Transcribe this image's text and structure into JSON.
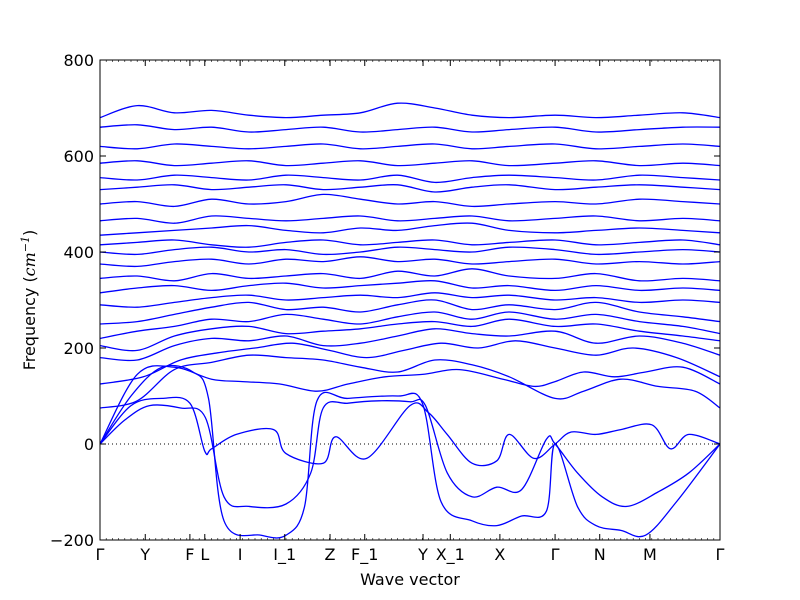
{
  "chart_data": {
    "type": "line",
    "title": "",
    "xlabel": "Wave vector",
    "ylabel": "Frequency (cm⁻¹)",
    "ylabel_prefix": "Frequency (",
    "ylabel_unit_base": "cm",
    "ylabel_unit_exp": "−1",
    "ylabel_suffix": ")",
    "ylim": [
      -200,
      800
    ],
    "xlim": [
      0,
      1
    ],
    "yticks": [
      -200,
      0,
      200,
      400,
      600,
      800
    ],
    "ytick_labels": [
      "−200",
      "0",
      "200",
      "400",
      "600",
      "800"
    ],
    "high_symmetry_points": [
      {
        "label": "Γ",
        "x": 0.0
      },
      {
        "label": "Y",
        "x": 0.073
      },
      {
        "label": "F",
        "x": 0.145
      },
      {
        "label": "L",
        "x": 0.169
      },
      {
        "label": "I",
        "x": 0.226
      },
      {
        "label": "I_1",
        "x": 0.298
      },
      {
        "label": "Z",
        "x": 0.371
      },
      {
        "label": "F_1",
        "x": 0.427
      },
      {
        "label": "Y",
        "x": 0.521
      },
      {
        "label": "X_1",
        "x": 0.565
      },
      {
        "label": "X",
        "x": 0.645
      },
      {
        "label": "Γ",
        "x": 0.734
      },
      {
        "label": "N",
        "x": 0.806
      },
      {
        "label": "M",
        "x": 0.887
      },
      {
        "label": "Γ",
        "x": 1.0
      }
    ],
    "zero_line": {
      "y": 0,
      "style": "dotted"
    },
    "grid": false,
    "legend": "none",
    "series_color": "#0000ff",
    "series": [
      {
        "x": [
          0,
          0.05,
          0.1,
          0.145,
          0.169,
          0.18,
          0.22,
          0.28,
          0.3,
          0.36,
          0.38,
          0.43,
          0.5,
          0.53,
          0.56,
          0.6,
          0.64,
          0.66,
          0.7,
          0.734,
          0.76,
          0.8,
          0.84,
          0.89,
          0.92,
          0.95,
          1.0
        ],
        "y": [
          0,
          80,
          95,
          85,
          -15,
          -10,
          20,
          30,
          -20,
          -40,
          15,
          -30,
          80,
          65,
          20,
          -40,
          -35,
          20,
          -30,
          0,
          25,
          20,
          30,
          40,
          -10,
          20,
          0
        ]
      },
      {
        "x": [
          0,
          0.04,
          0.08,
          0.13,
          0.17,
          0.2,
          0.24,
          0.3,
          0.34,
          0.36,
          0.4,
          0.45,
          0.5,
          0.525,
          0.56,
          0.6,
          0.64,
          0.68,
          0.72,
          0.734,
          0.77,
          0.81,
          0.85,
          0.9,
          0.95,
          1.0
        ],
        "y": [
          0,
          50,
          80,
          75,
          55,
          -110,
          -130,
          -125,
          -60,
          75,
          85,
          90,
          88,
          80,
          -60,
          -110,
          -90,
          -95,
          10,
          0,
          -60,
          -110,
          -130,
          -100,
          -60,
          0
        ]
      },
      {
        "x": [
          0,
          0.05,
          0.1,
          0.15,
          0.175,
          0.2,
          0.26,
          0.3,
          0.33,
          0.35,
          0.4,
          0.48,
          0.52,
          0.55,
          0.6,
          0.64,
          0.68,
          0.72,
          0.734,
          0.77,
          0.8,
          0.84,
          0.88,
          0.93,
          1.0
        ],
        "y": [
          0,
          100,
          160,
          150,
          95,
          -160,
          -190,
          -190,
          -130,
          90,
          95,
          100,
          85,
          -120,
          -160,
          -170,
          -150,
          -140,
          0,
          -130,
          -170,
          -180,
          -190,
          -120,
          0
        ]
      },
      {
        "x": [
          0,
          0.06,
          0.12,
          0.18,
          0.23,
          0.29,
          0.35,
          0.4,
          0.46,
          0.52,
          0.58,
          0.65,
          0.7,
          0.734,
          0.78,
          0.83,
          0.88,
          0.94,
          1.0
        ],
        "y": [
          0,
          145,
          160,
          135,
          130,
          125,
          110,
          125,
          140,
          145,
          155,
          135,
          120,
          130,
          150,
          140,
          150,
          160,
          125
        ]
      },
      {
        "x": [
          0,
          0.06,
          0.12,
          0.18,
          0.24,
          0.3,
          0.36,
          0.42,
          0.48,
          0.54,
          0.6,
          0.66,
          0.734,
          0.78,
          0.84,
          0.9,
          0.96,
          1.0
        ],
        "y": [
          75,
          90,
          155,
          170,
          185,
          180,
          175,
          160,
          150,
          175,
          165,
          140,
          95,
          110,
          135,
          120,
          110,
          75
        ]
      },
      {
        "x": [
          0,
          0.07,
          0.13,
          0.19,
          0.25,
          0.31,
          0.37,
          0.43,
          0.49,
          0.55,
          0.61,
          0.67,
          0.734,
          0.8,
          0.86,
          0.93,
          1.0
        ],
        "y": [
          125,
          140,
          175,
          190,
          200,
          210,
          195,
          180,
          195,
          210,
          200,
          215,
          200,
          185,
          200,
          180,
          140
        ]
      },
      {
        "x": [
          0,
          0.06,
          0.12,
          0.18,
          0.24,
          0.3,
          0.36,
          0.42,
          0.48,
          0.54,
          0.6,
          0.66,
          0.734,
          0.8,
          0.87,
          0.94,
          1.0
        ],
        "y": [
          180,
          175,
          205,
          220,
          215,
          225,
          205,
          210,
          225,
          240,
          230,
          225,
          235,
          210,
          225,
          210,
          185
        ]
      },
      {
        "x": [
          0,
          0.06,
          0.12,
          0.18,
          0.24,
          0.3,
          0.36,
          0.42,
          0.48,
          0.54,
          0.6,
          0.66,
          0.734,
          0.8,
          0.87,
          0.94,
          1.0
        ],
        "y": [
          205,
          195,
          225,
          240,
          245,
          230,
          235,
          240,
          250,
          255,
          245,
          260,
          245,
          250,
          235,
          225,
          215
        ]
      },
      {
        "x": [
          0,
          0.06,
          0.12,
          0.18,
          0.24,
          0.3,
          0.36,
          0.42,
          0.48,
          0.54,
          0.6,
          0.66,
          0.734,
          0.8,
          0.87,
          0.94,
          1.0
        ],
        "y": [
          220,
          235,
          245,
          260,
          255,
          270,
          260,
          250,
          265,
          275,
          260,
          275,
          260,
          270,
          255,
          245,
          230
        ]
      },
      {
        "x": [
          0,
          0.06,
          0.12,
          0.18,
          0.24,
          0.3,
          0.36,
          0.42,
          0.48,
          0.54,
          0.6,
          0.66,
          0.734,
          0.8,
          0.87,
          0.94,
          1.0
        ],
        "y": [
          250,
          255,
          270,
          285,
          295,
          280,
          285,
          275,
          290,
          300,
          280,
          290,
          280,
          295,
          275,
          265,
          255
        ]
      },
      {
        "x": [
          0,
          0.06,
          0.12,
          0.18,
          0.24,
          0.3,
          0.36,
          0.42,
          0.48,
          0.54,
          0.6,
          0.66,
          0.734,
          0.8,
          0.87,
          0.94,
          1.0
        ],
        "y": [
          290,
          285,
          295,
          305,
          310,
          300,
          305,
          310,
          305,
          315,
          305,
          310,
          300,
          305,
          295,
          300,
          295
        ]
      },
      {
        "x": [
          0,
          0.06,
          0.12,
          0.18,
          0.24,
          0.3,
          0.36,
          0.42,
          0.48,
          0.54,
          0.6,
          0.66,
          0.734,
          0.8,
          0.87,
          0.94,
          1.0
        ],
        "y": [
          315,
          325,
          330,
          320,
          330,
          335,
          325,
          330,
          335,
          340,
          325,
          330,
          320,
          330,
          320,
          325,
          320
        ]
      },
      {
        "x": [
          0,
          0.06,
          0.12,
          0.18,
          0.24,
          0.3,
          0.36,
          0.42,
          0.48,
          0.54,
          0.6,
          0.66,
          0.734,
          0.8,
          0.87,
          0.94,
          1.0
        ],
        "y": [
          345,
          350,
          340,
          355,
          345,
          350,
          355,
          345,
          360,
          350,
          365,
          350,
          345,
          355,
          340,
          345,
          340
        ]
      },
      {
        "x": [
          0,
          0.06,
          0.12,
          0.18,
          0.24,
          0.3,
          0.36,
          0.42,
          0.48,
          0.54,
          0.6,
          0.66,
          0.734,
          0.8,
          0.87,
          0.94,
          1.0
        ],
        "y": [
          375,
          370,
          380,
          385,
          375,
          385,
          380,
          390,
          380,
          385,
          375,
          380,
          385,
          375,
          380,
          375,
          380
        ]
      },
      {
        "x": [
          0,
          0.06,
          0.12,
          0.18,
          0.24,
          0.3,
          0.36,
          0.42,
          0.48,
          0.54,
          0.6,
          0.66,
          0.734,
          0.8,
          0.87,
          0.94,
          1.0
        ],
        "y": [
          400,
          395,
          405,
          410,
          400,
          405,
          395,
          400,
          410,
          405,
          400,
          410,
          405,
          395,
          400,
          405,
          400
        ]
      },
      {
        "x": [
          0,
          0.06,
          0.12,
          0.18,
          0.24,
          0.3,
          0.36,
          0.42,
          0.48,
          0.54,
          0.6,
          0.66,
          0.734,
          0.8,
          0.87,
          0.94,
          1.0
        ],
        "y": [
          415,
          420,
          425,
          415,
          410,
          420,
          425,
          415,
          420,
          425,
          415,
          420,
          425,
          415,
          420,
          425,
          415
        ]
      },
      {
        "x": [
          0,
          0.06,
          0.12,
          0.18,
          0.24,
          0.3,
          0.36,
          0.42,
          0.48,
          0.54,
          0.6,
          0.66,
          0.734,
          0.8,
          0.87,
          0.94,
          1.0
        ],
        "y": [
          435,
          440,
          445,
          450,
          455,
          445,
          440,
          450,
          445,
          455,
          460,
          445,
          440,
          445,
          450,
          445,
          440
        ]
      },
      {
        "x": [
          0,
          0.06,
          0.12,
          0.18,
          0.24,
          0.3,
          0.36,
          0.42,
          0.48,
          0.54,
          0.6,
          0.66,
          0.734,
          0.8,
          0.87,
          0.94,
          1.0
        ],
        "y": [
          465,
          470,
          460,
          475,
          470,
          465,
          470,
          475,
          465,
          470,
          475,
          465,
          470,
          475,
          465,
          470,
          465
        ]
      },
      {
        "x": [
          0,
          0.06,
          0.12,
          0.18,
          0.24,
          0.3,
          0.36,
          0.42,
          0.48,
          0.54,
          0.6,
          0.66,
          0.734,
          0.8,
          0.87,
          0.94,
          1.0
        ],
        "y": [
          500,
          505,
          495,
          510,
          500,
          505,
          520,
          510,
          500,
          505,
          495,
          500,
          505,
          500,
          510,
          505,
          500
        ]
      },
      {
        "x": [
          0,
          0.06,
          0.12,
          0.18,
          0.24,
          0.3,
          0.36,
          0.42,
          0.48,
          0.54,
          0.6,
          0.66,
          0.734,
          0.8,
          0.87,
          0.94,
          1.0
        ],
        "y": [
          530,
          535,
          540,
          530,
          535,
          540,
          530,
          535,
          540,
          525,
          535,
          540,
          530,
          535,
          540,
          535,
          530
        ]
      },
      {
        "x": [
          0,
          0.06,
          0.12,
          0.18,
          0.24,
          0.3,
          0.36,
          0.42,
          0.48,
          0.54,
          0.6,
          0.66,
          0.734,
          0.8,
          0.87,
          0.94,
          1.0
        ],
        "y": [
          555,
          550,
          560,
          555,
          550,
          560,
          555,
          550,
          560,
          545,
          555,
          560,
          555,
          550,
          560,
          555,
          550
        ]
      },
      {
        "x": [
          0,
          0.06,
          0.12,
          0.18,
          0.24,
          0.3,
          0.36,
          0.42,
          0.48,
          0.54,
          0.6,
          0.66,
          0.734,
          0.8,
          0.87,
          0.94,
          1.0
        ],
        "y": [
          585,
          590,
          580,
          585,
          590,
          580,
          585,
          590,
          580,
          585,
          590,
          580,
          585,
          590,
          580,
          585,
          580
        ]
      },
      {
        "x": [
          0,
          0.06,
          0.12,
          0.18,
          0.24,
          0.3,
          0.36,
          0.42,
          0.48,
          0.54,
          0.6,
          0.66,
          0.734,
          0.8,
          0.87,
          0.94,
          1.0
        ],
        "y": [
          620,
          615,
          625,
          620,
          615,
          620,
          625,
          615,
          620,
          625,
          615,
          620,
          625,
          615,
          620,
          625,
          620
        ]
      },
      {
        "x": [
          0,
          0.06,
          0.12,
          0.18,
          0.24,
          0.3,
          0.36,
          0.42,
          0.48,
          0.54,
          0.6,
          0.66,
          0.734,
          0.8,
          0.87,
          0.94,
          1.0
        ],
        "y": [
          660,
          665,
          655,
          660,
          650,
          655,
          660,
          650,
          655,
          660,
          650,
          655,
          660,
          650,
          655,
          660,
          660
        ]
      },
      {
        "x": [
          0,
          0.06,
          0.12,
          0.18,
          0.24,
          0.3,
          0.36,
          0.42,
          0.48,
          0.54,
          0.6,
          0.66,
          0.734,
          0.8,
          0.87,
          0.94,
          1.0
        ],
        "y": [
          680,
          705,
          690,
          695,
          685,
          680,
          685,
          690,
          710,
          700,
          685,
          680,
          685,
          680,
          685,
          690,
          680
        ]
      }
    ]
  }
}
